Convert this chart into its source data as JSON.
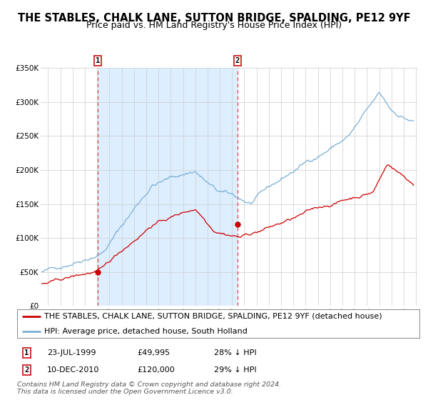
{
  "title": "THE STABLES, CHALK LANE, SUTTON BRIDGE, SPALDING, PE12 9YF",
  "subtitle": "Price paid vs. HM Land Registry's House Price Index (HPI)",
  "red_legend": "THE STABLES, CHALK LANE, SUTTON BRIDGE, SPALDING, PE12 9YF (detached house)",
  "blue_legend": "HPI: Average price, detached house, South Holland",
  "annotation1_date": "23-JUL-1999",
  "annotation1_price": "£49,995",
  "annotation1_hpi": "28% ↓ HPI",
  "annotation2_date": "10-DEC-2010",
  "annotation2_price": "£120,000",
  "annotation2_hpi": "29% ↓ HPI",
  "footnote1": "Contains HM Land Registry data © Crown copyright and database right 2024.",
  "footnote2": "This data is licensed under the Open Government Licence v3.0.",
  "ylim": [
    0,
    350000
  ],
  "xlim_start": 1994.9,
  "xlim_end": 2025.6,
  "purchase1_x": 1999.55,
  "purchase1_y": 49995,
  "purchase2_x": 2010.94,
  "purchase2_y": 120000,
  "red_line_color": "#cc0000",
  "blue_line_color": "#7aafd4",
  "shading_color": "#ddeeff",
  "grid_color": "#cccccc",
  "background_color": "#ffffff",
  "title_fontsize": 10.5,
  "subtitle_fontsize": 9,
  "axis_label_fontsize": 7.5,
  "legend_fontsize": 8,
  "annotation_fontsize": 8,
  "footnote_fontsize": 6.8
}
